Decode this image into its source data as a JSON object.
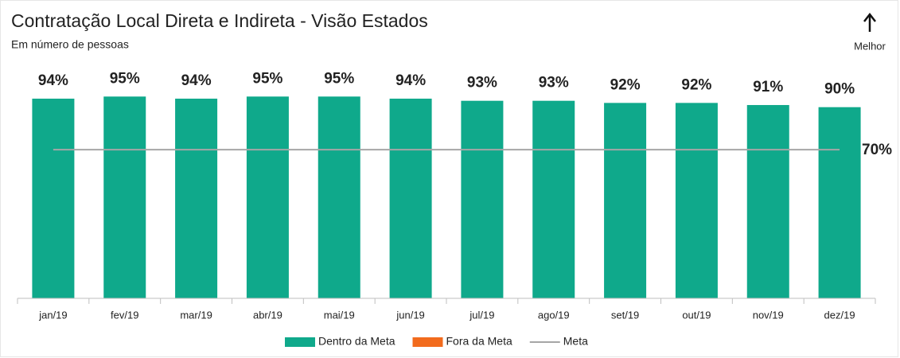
{
  "chart_data": {
    "type": "bar",
    "title": "Contratação Local Direta e Indireta - Visão Estados",
    "subtitle": "Em número de pessoas",
    "annotation": "Melhor",
    "categories": [
      "jan/19",
      "fev/19",
      "mar/19",
      "abr/19",
      "mai/19",
      "jun/19",
      "jul/19",
      "ago/19",
      "set/19",
      "out/19",
      "nov/19",
      "dez/19"
    ],
    "series": [
      {
        "name": "Dentro da Meta",
        "color": "#0fa98b",
        "values": [
          94,
          95,
          94,
          95,
          95,
          94,
          93,
          93,
          92,
          92,
          91,
          90
        ],
        "value_labels": [
          "94%",
          "95%",
          "94%",
          "95%",
          "95%",
          "94%",
          "93%",
          "93%",
          "92%",
          "92%",
          "91%",
          "90%"
        ]
      },
      {
        "name": "Fora da Meta",
        "color": "#f26b1d",
        "values": [
          0,
          0,
          0,
          0,
          0,
          0,
          0,
          0,
          0,
          0,
          0,
          0
        ]
      }
    ],
    "target": {
      "name": "Meta",
      "value": 70,
      "label": "70%",
      "color": "#a6a6a6"
    },
    "ylim": [
      0,
      100
    ]
  }
}
